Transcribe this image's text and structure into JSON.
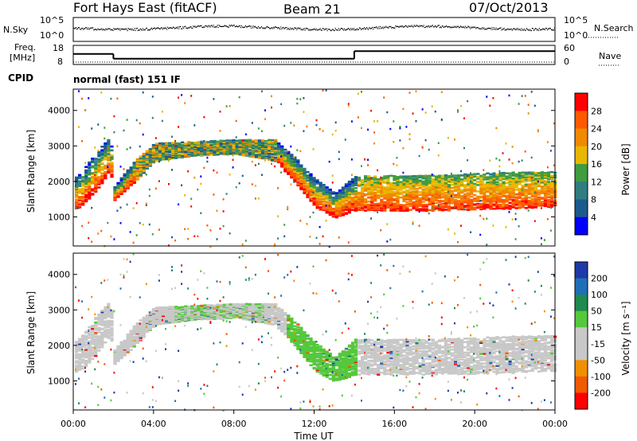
{
  "header": {
    "station": "Fort Hays East (fitACF)",
    "beam": "Beam 21",
    "date": "07/Oct/2013"
  },
  "noise_panel": {
    "left_label": "N.Sky",
    "right_label": "N.Search",
    "left_ticks": [
      "10^5",
      "10^0"
    ],
    "right_ticks": [
      "10^5",
      "10^0"
    ]
  },
  "freq_panel": {
    "left_label_line1": "Freq.",
    "left_label_line2": "[MHz]",
    "right_label": "Nave",
    "left_ticks": [
      "18",
      "8"
    ],
    "right_ticks": [
      "60",
      "0"
    ],
    "freq_steps": [
      {
        "start_h": 0,
        "end_h": 2,
        "mhz": 13.5
      },
      {
        "start_h": 2,
        "end_h": 14,
        "mhz": 11.0
      },
      {
        "start_h": 14,
        "end_h": 24,
        "mhz": 15.0
      }
    ]
  },
  "cpid": {
    "label": "CPID",
    "mode": "normal (fast) 151 IF"
  },
  "x_axis": {
    "title": "Time UT",
    "ticks": [
      "00:00",
      "04:00",
      "08:00",
      "12:00",
      "16:00",
      "20:00",
      "00:00"
    ]
  },
  "power_colorbar": {
    "title": "Power [dB]",
    "ticks": [
      "28",
      "24",
      "20",
      "16",
      "12",
      "8",
      "4"
    ],
    "colors": [
      "#ff0000",
      "#ff5a00",
      "#f08a00",
      "#e8b800",
      "#3f9c3f",
      "#2f7d80",
      "#1c5a8e",
      "#0000ff"
    ]
  },
  "velocity_colorbar": {
    "title": "Velocity [m s⁻¹]",
    "ticks": [
      "200",
      "100",
      "50",
      "15",
      "-15",
      "-50",
      "-100",
      "-200"
    ],
    "colors": [
      "#1e3aa8",
      "#1f6fb8",
      "#1f8a4f",
      "#55c83c",
      "#c8c8c8",
      "#c8c8c8",
      "#f09000",
      "#f05a00",
      "#ff0000"
    ]
  },
  "chart_data": {
    "type": "heatmap",
    "title": "Fort Hays East (fitACF)",
    "xlabel": "Time UT",
    "ylabel": "Slant Range [km]",
    "xlim_hours": [
      0,
      24
    ],
    "ylim_km": [
      180,
      4600
    ],
    "y_ticks": [
      1000,
      2000,
      3000,
      4000
    ],
    "panels": [
      "Power [dB]",
      "Velocity [m s⁻¹]"
    ],
    "main_echo_band_km": [
      {
        "t": 0.0,
        "lo": 1200,
        "hi": 2100
      },
      {
        "t": 0.5,
        "lo": 1400,
        "hi": 2400
      },
      {
        "t": 1.0,
        "lo": 1700,
        "hi": 2800
      },
      {
        "t": 1.8,
        "lo": 2300,
        "hi": 3300
      },
      {
        "t": 2.0,
        "lo": 1500,
        "hi": 1900
      },
      {
        "t": 3.0,
        "lo": 2000,
        "hi": 2600
      },
      {
        "t": 4.0,
        "lo": 2600,
        "hi": 3100
      },
      {
        "t": 6.0,
        "lo": 2750,
        "hi": 3150
      },
      {
        "t": 8.0,
        "lo": 2800,
        "hi": 3200
      },
      {
        "t": 10.0,
        "lo": 2600,
        "hi": 3200
      },
      {
        "t": 11.0,
        "lo": 2000,
        "hi": 2700
      },
      {
        "t": 12.0,
        "lo": 1300,
        "hi": 2100
      },
      {
        "t": 13.0,
        "lo": 1000,
        "hi": 1700
      },
      {
        "t": 14.0,
        "lo": 1200,
        "hi": 2200
      },
      {
        "t": 18.0,
        "lo": 1200,
        "hi": 2200
      },
      {
        "t": 22.0,
        "lo": 1250,
        "hi": 2300
      },
      {
        "t": 24.0,
        "lo": 1300,
        "hi": 2300
      }
    ]
  }
}
